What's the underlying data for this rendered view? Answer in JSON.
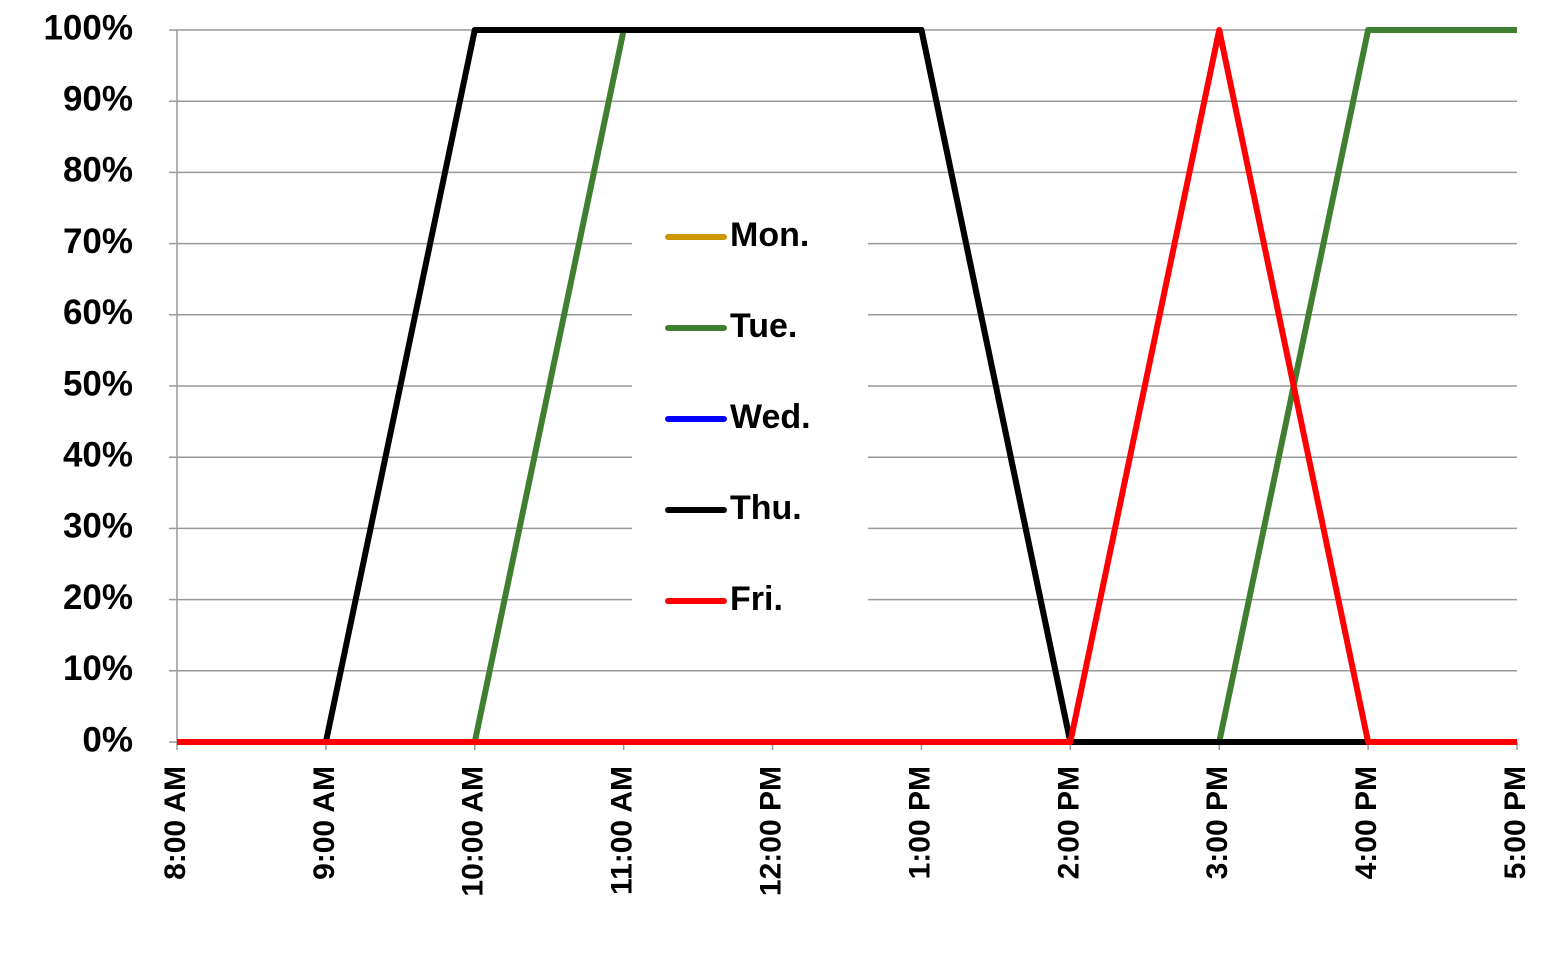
{
  "chart_data": {
    "type": "line",
    "categories": [
      "8:00 AM",
      "9:00 AM",
      "10:00 AM",
      "11:00 AM",
      "12:00 PM",
      "1:00 PM",
      "2:00 PM",
      "3:00 PM",
      "4:00 PM",
      "5:00 PM"
    ],
    "series": [
      {
        "name": "Mon.",
        "color": "#cc9900",
        "values": [
          0,
          0,
          0,
          0,
          0,
          0,
          0,
          0,
          0,
          0
        ]
      },
      {
        "name": "Tue.",
        "color": "#3f7f2f",
        "values": [
          0,
          0,
          0,
          100,
          100,
          100,
          0,
          0,
          100,
          100
        ]
      },
      {
        "name": "Wed.",
        "color": "#0000ff",
        "values": [
          0,
          0,
          0,
          0,
          0,
          0,
          0,
          0,
          0,
          0
        ]
      },
      {
        "name": "Thu.",
        "color": "#000000",
        "values": [
          0,
          0,
          100,
          100,
          100,
          100,
          0,
          0,
          0,
          0
        ]
      },
      {
        "name": "Fri.",
        "color": "#ff0000",
        "values": [
          0,
          0,
          0,
          0,
          0,
          0,
          0,
          100,
          0,
          0
        ]
      }
    ],
    "ylim": [
      0,
      100
    ],
    "yticks": [
      {
        "value": 0,
        "label": "0%"
      },
      {
        "value": 10,
        "label": "10%"
      },
      {
        "value": 20,
        "label": "20%"
      },
      {
        "value": 30,
        "label": "30%"
      },
      {
        "value": 40,
        "label": "40%"
      },
      {
        "value": 50,
        "label": "50%"
      },
      {
        "value": 60,
        "label": "60%"
      },
      {
        "value": 70,
        "label": "70%"
      },
      {
        "value": 80,
        "label": "80%"
      },
      {
        "value": 90,
        "label": "90%"
      },
      {
        "value": 100,
        "label": "100%"
      }
    ],
    "grid": true,
    "legend": "center"
  }
}
